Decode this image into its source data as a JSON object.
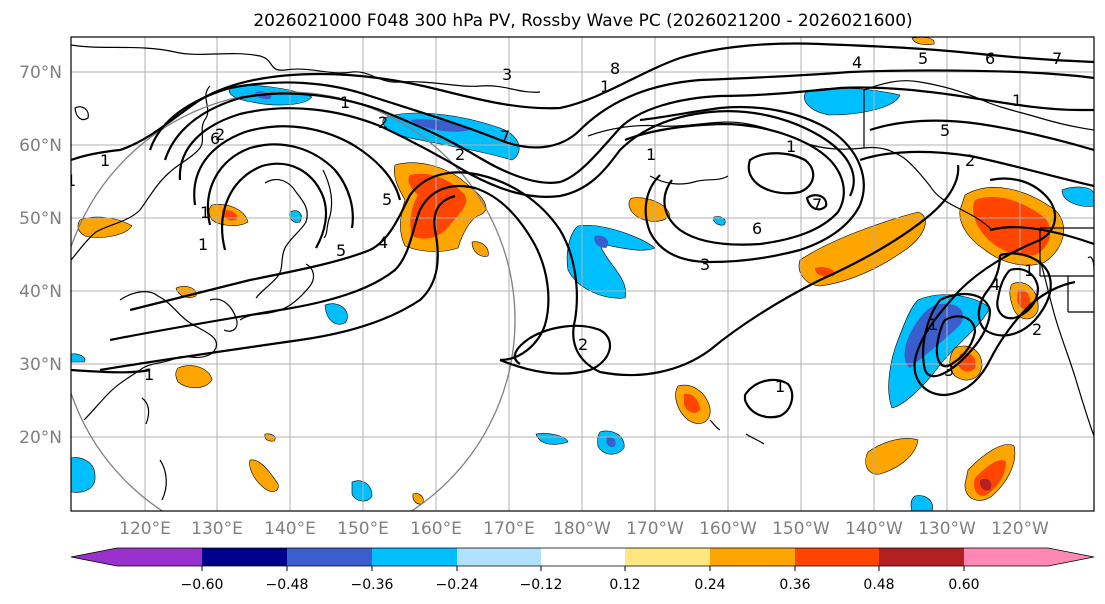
{
  "title": "2026021000 F048 300 hPa PV, Rossby Wave PC (2026021200 - 2026021600)",
  "lat_labels": [
    "70°N",
    "60°N",
    "50°N",
    "40°N",
    "30°N",
    "20°N"
  ],
  "lon_labels": [
    "120°E",
    "130°E",
    "140°E",
    "150°E",
    "160°E",
    "170°E",
    "180°W",
    "170°W",
    "160°W",
    "150°W",
    "140°W",
    "130°W",
    "120°W"
  ],
  "colorbar": {
    "tick_labels": [
      "−0.60",
      "−0.48",
      "−0.36",
      "−0.24",
      "−0.12",
      "0.12",
      "0.24",
      "0.36",
      "0.48",
      "0.60"
    ],
    "colors": [
      "#9932cc",
      "#00008b",
      "#3a5fcd",
      "#00bfff",
      "#b0e2ff",
      "#ffffff",
      "#ffe680",
      "#ffa500",
      "#ff4500",
      "#b22222",
      "#ff87b4"
    ]
  },
  "contour_labels": [
    "1",
    "2",
    "1",
    "2",
    "1",
    "2",
    "5",
    "4",
    "7",
    "8",
    "3",
    "4",
    "5",
    "6",
    "7",
    "1",
    "6",
    "5",
    "2",
    "1",
    "1",
    "6",
    "3",
    "7",
    "1",
    "5",
    "1",
    "1",
    "2",
    "1",
    "4",
    "3",
    "1",
    "2",
    "1",
    "1"
  ]
}
